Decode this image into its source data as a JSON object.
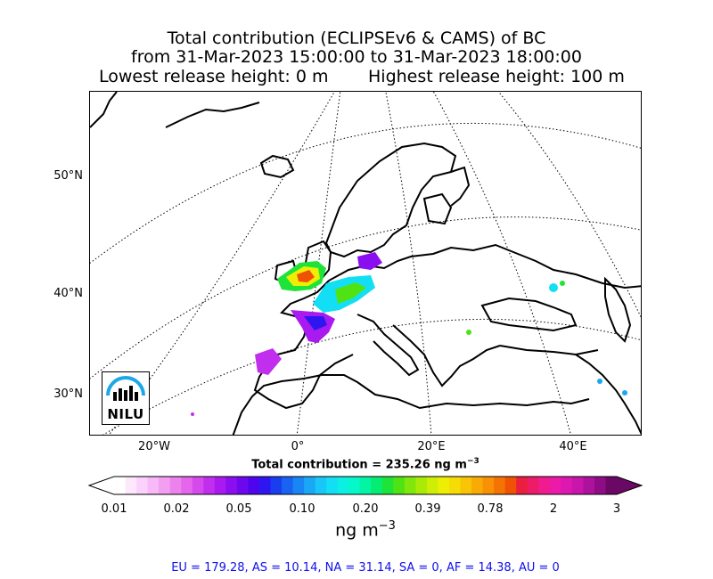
{
  "title": {
    "line1": "Total contribution (ECLIPSEv6 & CAMS) of BC",
    "line2": "from 31-Mar-2023 15:00:00 to 31-Mar-2023 18:00:00",
    "lowest": "Lowest release height: 0 m",
    "highest": "Highest release height: 100 m"
  },
  "map": {
    "lat_labels": [
      "50°N",
      "40°N",
      "30°N"
    ],
    "lon_labels": [
      "20°W",
      "0°",
      "20°E",
      "40°E"
    ]
  },
  "total_label": "Total contribution = 235.26 ng m",
  "total_exp": "−3",
  "colorbar": {
    "ticks": [
      "0.01",
      "0.02",
      "0.05",
      "0.10",
      "0.20",
      "0.39",
      "0.78",
      "2",
      "3"
    ],
    "unit": "ng m",
    "unit_exp": "−3",
    "colors": [
      "#ffffff",
      "#fde8fd",
      "#fbd2fb",
      "#f7b9f7",
      "#f29ff2",
      "#ec83ec",
      "#e466ea",
      "#d64aec",
      "#c22eee",
      "#a81aef",
      "#8a0eef",
      "#6d07ee",
      "#4e05ee",
      "#2d16ef",
      "#1a3df0",
      "#1a62f2",
      "#1a85f4",
      "#19a7f6",
      "#18c6f8",
      "#12dff4",
      "#0cf0e3",
      "#06f7c9",
      "#03f4a3",
      "#05ec72",
      "#1ee43a",
      "#50e314",
      "#7fe70b",
      "#aaea07",
      "#cfee05",
      "#eeee05",
      "#f6dc05",
      "#f8c405",
      "#f8ab05",
      "#f89105",
      "#f57305",
      "#f05205",
      "#ea1f40",
      "#ee1c68",
      "#f01c8f",
      "#ec1aa8",
      "#dd18b0",
      "#c816aa",
      "#ad129c",
      "#8e0d86",
      "#6b0866"
    ]
  },
  "logo": {
    "text": "NILU"
  },
  "regions": "EU = 179.28,  AS = 10.14,  NA = 31.14,  SA = 0,  AF = 14.38,  AU = 0"
}
